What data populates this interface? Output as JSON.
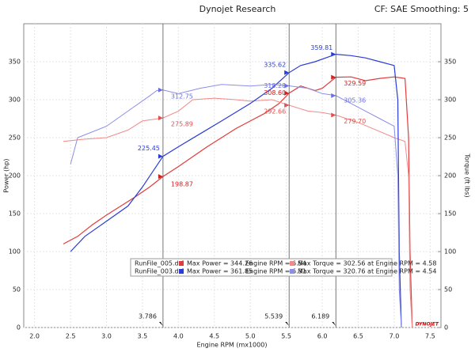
{
  "chart_data": {
    "type": "line",
    "title": "Dynojet Research",
    "subtitle": "CF: SAE Smoothing: 5",
    "x_label": "Engine RPM (mx1000)",
    "y_label": "Power (hp)",
    "y2_label": "Torque (ft lbs)",
    "watermark": "DYNOJET",
    "xlim": [
      1.85,
      7.65
    ],
    "xticks": [
      {
        "value": 2,
        "label": "2.0"
      },
      2.5,
      {
        "value": 3,
        "label": "3.0"
      },
      3.5,
      {
        "value": 4,
        "label": "4.0"
      },
      4.5,
      {
        "value": 5,
        "label": "5.0"
      },
      5.5,
      {
        "value": 6,
        "label": "6.0"
      },
      6.5,
      {
        "value": 7,
        "label": "7.0"
      },
      7.5
    ],
    "ylim": [
      0,
      400
    ],
    "yticks": [
      0,
      50,
      100,
      150,
      200,
      250,
      300,
      350
    ],
    "y2lim": [
      0,
      400
    ],
    "y2ticks": [
      0,
      50,
      100,
      150,
      200,
      250,
      300,
      350
    ],
    "grid": true,
    "series": [
      {
        "name": "RunFile_005 Power",
        "color": "#e03c3c",
        "x": [
          2.4,
          2.6,
          2.8,
          3.0,
          3.2,
          3.4,
          3.6,
          3.786,
          4.0,
          4.2,
          4.4,
          4.6,
          4.8,
          5.0,
          5.2,
          5.4,
          5.539,
          5.7,
          5.9,
          6.0,
          6.189,
          6.4,
          6.6,
          6.8,
          7.0,
          7.15,
          7.2,
          7.22,
          7.25
        ],
        "values": [
          110,
          120,
          135,
          148,
          160,
          172,
          185,
          198.87,
          212,
          225,
          238,
          250,
          262,
          272,
          282,
          295,
          308.6,
          318,
          312,
          315,
          329.59,
          330,
          325,
          328,
          330,
          328,
          250,
          100,
          0
        ]
      },
      {
        "name": "RunFile_005 Torque",
        "color": "#f08a8a",
        "axis": "y2",
        "x": [
          2.4,
          2.7,
          3.0,
          3.3,
          3.5,
          3.786,
          4.0,
          4.2,
          4.5,
          4.8,
          5.0,
          5.3,
          5.539,
          5.8,
          6.0,
          6.189,
          6.5,
          6.8,
          7.0,
          7.15,
          7.2,
          7.22,
          7.25
        ],
        "values": [
          245,
          248,
          250,
          260,
          272,
          275.89,
          285,
          300,
          302,
          300,
          298,
          300,
          292.66,
          285,
          283,
          279.7,
          270,
          258,
          250,
          245,
          200,
          50,
          0
        ]
      },
      {
        "name": "RunFile_003 Power",
        "color": "#2a3cd8",
        "x": [
          2.5,
          2.7,
          3.0,
          3.3,
          3.5,
          3.786,
          4.0,
          4.3,
          4.6,
          5.0,
          5.3,
          5.539,
          5.7,
          5.9,
          6.189,
          6.4,
          6.6,
          6.8,
          7.0,
          7.05,
          7.07,
          7.1
        ],
        "values": [
          100,
          120,
          140,
          160,
          185,
          225.45,
          238,
          255,
          272,
          295,
          315,
          335.62,
          345,
          350,
          359.81,
          358,
          355,
          350,
          345,
          300,
          100,
          0
        ]
      },
      {
        "name": "RunFile_003 Torque",
        "color": "#8a8ee8",
        "axis": "y2",
        "x": [
          2.5,
          2.6,
          3.0,
          3.3,
          3.6,
          3.7,
          3.786,
          4.0,
          4.3,
          4.6,
          5.0,
          5.3,
          5.539,
          5.8,
          6.0,
          6.189,
          6.4,
          6.6,
          6.8,
          7.0,
          7.05,
          7.07,
          7.1
        ],
        "values": [
          215,
          250,
          265,
          285,
          305,
          312,
          312.75,
          308,
          315,
          320,
          318,
          320,
          318.28,
          315,
          308,
          305.36,
          295,
          285,
          275,
          265,
          200,
          50,
          0
        ]
      }
    ],
    "cursors": [
      {
        "value": 3.786,
        "label": "3.786"
      },
      {
        "value": 5.539,
        "label": "5.539"
      },
      {
        "value": 6.189,
        "label": "6.189"
      }
    ],
    "readouts": [
      {
        "x": 3.786,
        "value": 225.45,
        "color": "#2a3cd8"
      },
      {
        "x": 3.786,
        "value": 312.75,
        "color": "#6a70e0"
      },
      {
        "x": 3.786,
        "value": 198.87,
        "color": "#d02020"
      },
      {
        "x": 3.786,
        "value": 275.89,
        "color": "#e05050"
      },
      {
        "x": 5.539,
        "value": 335.62,
        "color": "#2a3cd8"
      },
      {
        "x": 5.539,
        "value": 318.28,
        "color": "#6a70e0"
      },
      {
        "x": 5.539,
        "value": {
          "value": 308.6,
          "label": "308.60"
        },
        "color": "#d02020"
      },
      {
        "x": 5.539,
        "value": 292.66,
        "color": "#e05050"
      },
      {
        "x": 6.189,
        "value": 359.81,
        "color": "#2a3cd8"
      },
      {
        "x": 6.189,
        "value": 305.36,
        "color": "#6a70e0"
      },
      {
        "x": 6.189,
        "value": 329.59,
        "color": "#d02020"
      },
      {
        "x": 6.189,
        "value": {
          "value": 279.7,
          "label": "279.70"
        },
        "color": "#e05050"
      }
    ],
    "legend": [
      {
        "file": "RunFile_005.drf",
        "power": "Max Power = 344.26",
        "power_rpm": "Engine RPM = 6.54",
        "torque": "Max Torque = 302.56 at Engine RPM = 4.58",
        "power_color": "#e03c3c",
        "torque_color": "#f08a8a"
      },
      {
        "file": "RunFile_003.drf",
        "power": "Max Power = 361.85",
        "power_rpm": "Engine RPM = 6.31",
        "torque": "Max Torque = 320.76 at Engine RPM = 4.54",
        "power_color": "#2a3cd8",
        "torque_color": "#8a8ee8"
      }
    ]
  }
}
